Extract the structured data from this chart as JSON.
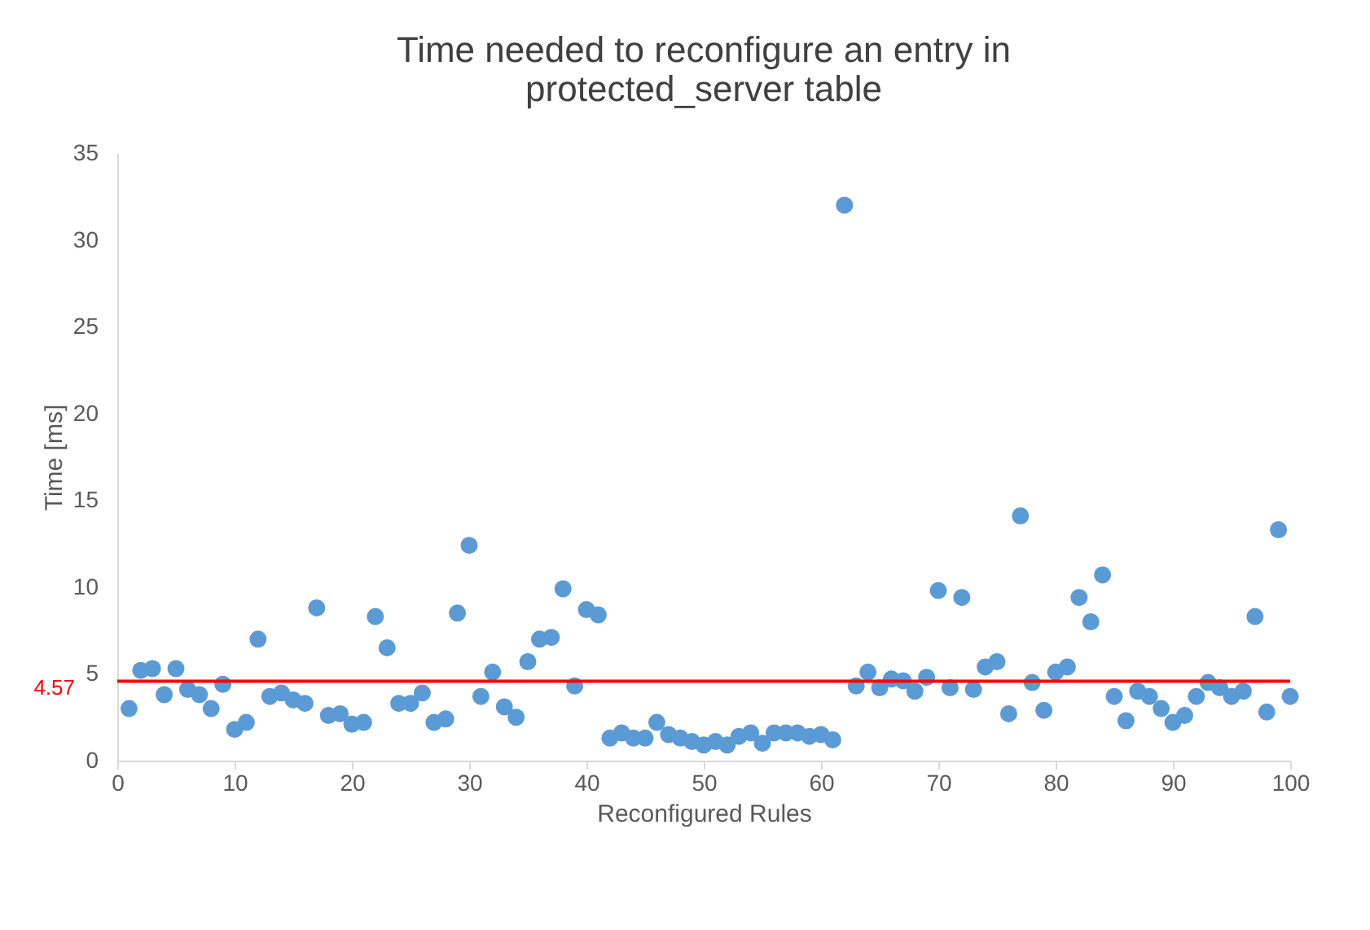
{
  "chart_data": {
    "type": "scatter",
    "title": "Time needed to reconfigure an entry in protected_server table",
    "xlabel": "Reconfigured Rules",
    "ylabel": "Time [ms]",
    "x": [
      1,
      2,
      3,
      4,
      5,
      6,
      7,
      8,
      9,
      10,
      11,
      12,
      13,
      14,
      15,
      16,
      17,
      18,
      19,
      20,
      21,
      22,
      23,
      24,
      25,
      26,
      27,
      28,
      29,
      30,
      31,
      32,
      33,
      34,
      35,
      36,
      37,
      38,
      39,
      40,
      41,
      42,
      43,
      44,
      45,
      46,
      47,
      48,
      49,
      50,
      51,
      52,
      53,
      54,
      55,
      56,
      57,
      58,
      59,
      60,
      61,
      62,
      63,
      64,
      65,
      66,
      67,
      68,
      69,
      70,
      71,
      72,
      73,
      74,
      75,
      76,
      77,
      78,
      79,
      80,
      81,
      82,
      83,
      84,
      85,
      86,
      87,
      88,
      89,
      90,
      91,
      92,
      93,
      94,
      95,
      96,
      97,
      98,
      99,
      100
    ],
    "series": [
      {
        "color": "#5b9bd5",
        "values": [
          3.0,
          5.2,
          5.3,
          3.8,
          5.3,
          4.1,
          3.8,
          3.0,
          4.4,
          1.8,
          2.2,
          7.0,
          3.7,
          3.9,
          3.5,
          3.3,
          8.8,
          2.6,
          2.7,
          2.1,
          2.2,
          8.3,
          6.5,
          3.3,
          3.3,
          3.9,
          2.2,
          2.4,
          8.5,
          12.4,
          3.7,
          5.1,
          3.1,
          2.5,
          5.7,
          7.0,
          7.1,
          9.9,
          4.3,
          8.7,
          8.4,
          1.3,
          1.6,
          1.3,
          1.3,
          2.2,
          1.5,
          1.3,
          1.1,
          0.9,
          1.1,
          0.9,
          1.4,
          1.6,
          1.0,
          1.6,
          1.6,
          1.6,
          1.4,
          1.5,
          1.2,
          32.0,
          4.3,
          5.1,
          4.2,
          4.7,
          4.6,
          4.0,
          4.8,
          9.8,
          4.2,
          9.4,
          4.1,
          5.4,
          5.7,
          2.7,
          14.1,
          4.5,
          2.9,
          5.1,
          5.4,
          9.4,
          8.0,
          10.7,
          3.7,
          2.3,
          4.0,
          3.7,
          3.0,
          2.2,
          2.6,
          3.7,
          4.5,
          4.2,
          3.7,
          4.0,
          8.3,
          2.8,
          13.3,
          3.7
        ]
      }
    ],
    "xlim": [
      0,
      100
    ],
    "xticks": [
      0,
      10,
      20,
      30,
      40,
      50,
      60,
      70,
      80,
      90,
      100
    ],
    "ylim": [
      0,
      35
    ],
    "yticks": [
      0,
      5,
      10,
      15,
      20,
      25,
      30,
      35
    ],
    "ref_lines": [
      {
        "axis": "y",
        "value": 4.57,
        "label": "4.57",
        "color": "#ff0000"
      }
    ],
    "marker": "circle",
    "grid": false,
    "legend": false
  }
}
